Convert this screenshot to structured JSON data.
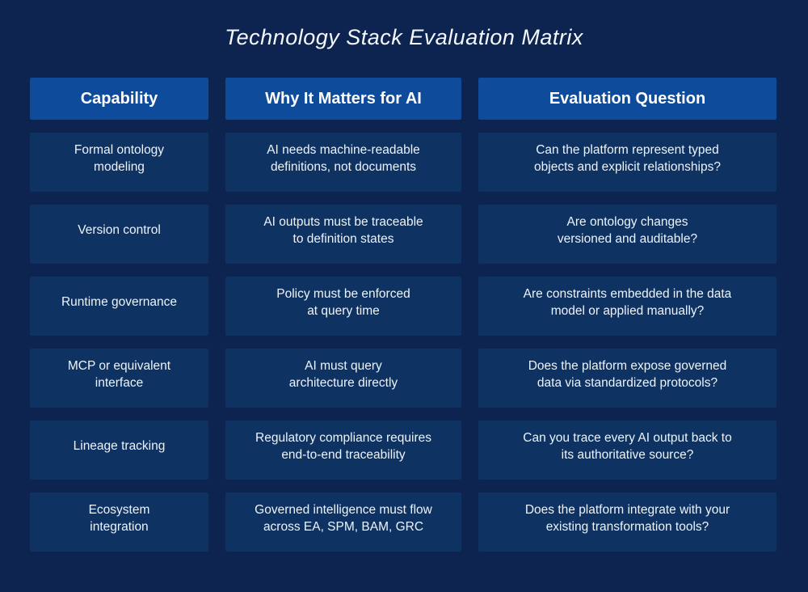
{
  "title": "Technology Stack Evaluation Matrix",
  "colors": {
    "background": "#0d2350",
    "header_cell": "#0e4b9b",
    "body_cell": "#0e3262",
    "title_text": "#f5f8fc",
    "body_text": "#eef3f9"
  },
  "table": {
    "headers": [
      "Capability",
      "Why It Matters for AI",
      "Evaluation Question"
    ],
    "rows": [
      {
        "capability": "Formal ontology\nmodeling",
        "why": "AI needs machine-readable\ndefinitions, not documents",
        "question": "Can the platform represent typed\nobjects and explicit relationships?"
      },
      {
        "capability": "Version control",
        "why": "AI outputs must be traceable\nto definition states",
        "question": "Are ontology changes\nversioned and auditable?"
      },
      {
        "capability": "Runtime governance",
        "why": "Policy must be enforced\nat query time",
        "question": "Are constraints embedded in the data\nmodel or applied manually?"
      },
      {
        "capability": "MCP or equivalent\ninterface",
        "why": "AI must query\narchitecture directly",
        "question": "Does the platform expose governed\ndata via standardized protocols?"
      },
      {
        "capability": "Lineage tracking",
        "why": "Regulatory compliance requires\nend-to-end traceability",
        "question": "Can you trace every AI output back to\nits authoritative source?"
      },
      {
        "capability": "Ecosystem\nintegration",
        "why": "Governed intelligence must flow\nacross EA, SPM, BAM, GRC",
        "question": "Does the platform integrate with your\nexisting transformation tools?"
      }
    ]
  }
}
